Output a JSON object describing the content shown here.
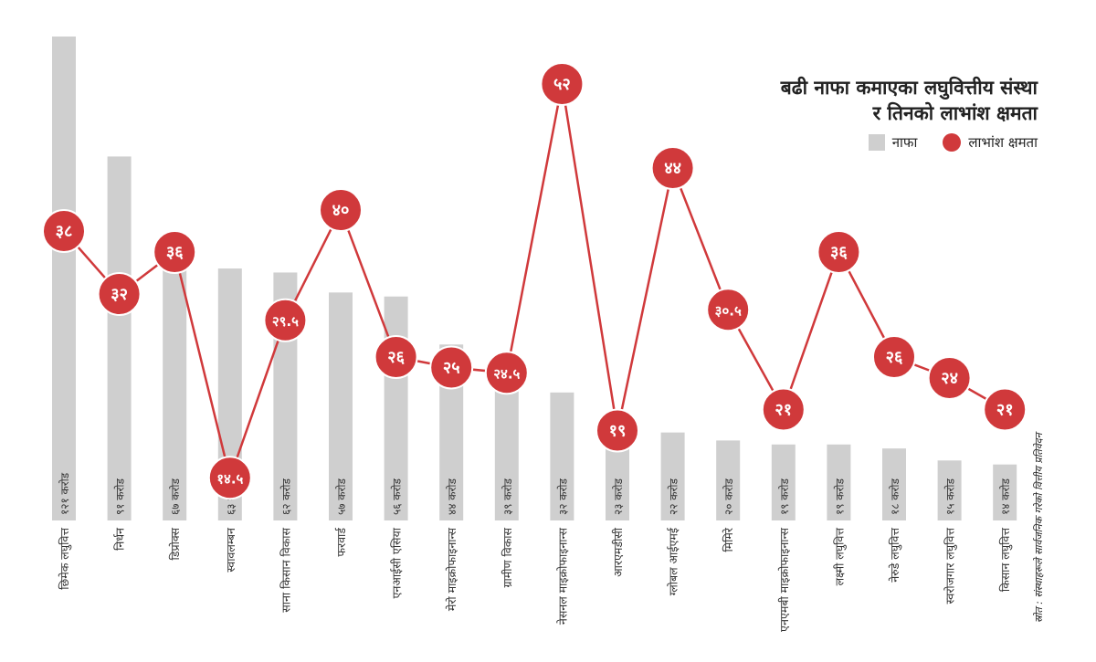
{
  "title_line1": "बढी नाफा कमाएका लघुवित्तीय संस्था",
  "title_line2": "र तिनको लाभांश क्षमता",
  "legend": {
    "bar_label": "नाफा",
    "dot_label": "लाभांश क्षमता"
  },
  "source": "स्रोत : संस्थाहरूले सार्वजनिक गरेको वित्तीय प्रतिवेदन",
  "colors": {
    "bar": "#cfcfcf",
    "dot": "#d0393b",
    "line": "#d0393b"
  },
  "chart_data": {
    "type": "bar",
    "categories": [
      "छिमेक लघुवित्त",
      "निर्धन",
      "डिप्रोक्स",
      "स्वावलम्बन",
      "साना किसान विकास",
      "फरवार्ड",
      "एनआईसी एसिया",
      "मेरो माइक्रोफाइनान्स",
      "ग्रामीण विकास",
      "नेसनल माइक्रोफाइनान्स",
      "आरएमडीसी",
      "ग्लोबल आईएमई",
      "मिमिरे",
      "एनएमबी माइक्रोफाइनान्स",
      "लक्ष्मी लघुवित्त",
      "नेरुडे लघुवित्त",
      "स्वरोजगार लघुवित्त",
      "किसान लघुवित्त"
    ],
    "series": [
      {
        "name": "नाफा",
        "type": "bar",
        "values": [
          121,
          91,
          67,
          63,
          62,
          57,
          56,
          44,
          39,
          32,
          23,
          22,
          20,
          19,
          19,
          18,
          15,
          14
        ],
        "labels": [
          "१२१ करोड",
          "९१ करोड",
          "६७ करोड",
          "६३ करोड",
          "६२ करोड",
          "५७ करोड",
          "५६ करोड",
          "४४ करोड",
          "३९ करोड",
          "३२ करोड",
          "२३ करोड",
          "२२ करोड",
          "२० करोड",
          "१९ करोड",
          "१९ करोड",
          "१८ करोड",
          "१५ करोड",
          "१४ करोड"
        ]
      },
      {
        "name": "लाभांश क्षमता",
        "type": "line",
        "values": [
          38,
          32,
          36,
          14.5,
          29.5,
          40,
          26,
          25,
          24.5,
          52,
          19,
          44,
          30.5,
          21,
          36,
          26,
          24,
          21
        ],
        "labels": [
          "३८",
          "३२",
          "३६",
          "१४.५",
          "२९.५",
          "४०",
          "२६",
          "२५",
          "२४.५",
          "५२",
          "१९",
          "४४",
          "३०.५",
          "२१",
          "३६",
          "२६",
          "२४",
          "२१"
        ]
      }
    ],
    "grid": false,
    "legend_position": "top-right"
  }
}
